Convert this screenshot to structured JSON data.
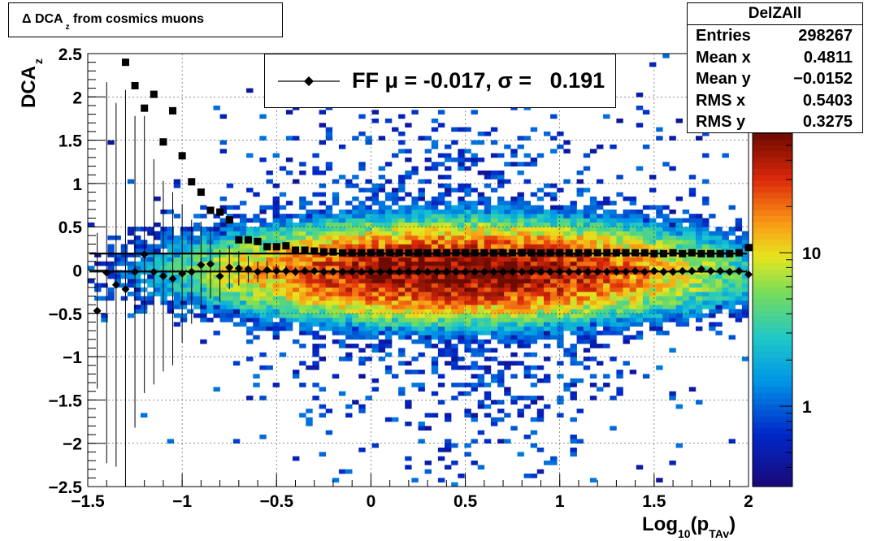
{
  "title": "Δ DCA_z from cosmics muons",
  "title_parts": {
    "main": "Δ DCA",
    "sub": "z",
    "rest": " from cosmics muons"
  },
  "stats": {
    "name": "DelZAll",
    "rows": [
      {
        "label": "Entries",
        "value": "298267"
      },
      {
        "label": "Mean x",
        "value": "0.4811"
      },
      {
        "label": "Mean y",
        "value": "−0.0152"
      },
      {
        "label": "RMS x",
        "value": "0.5403"
      },
      {
        "label": "RMS y",
        "value": "0.3275"
      }
    ]
  },
  "legend": {
    "label": "FF μ = -0.017, σ =   0.191"
  },
  "colors": {
    "frame": "#000000",
    "grid": "#000000",
    "markers": "#000000"
  },
  "chart_data": {
    "type": "heatmap",
    "title": "Δ DCA_z from cosmics muons",
    "xlabel": "Log10(pTAv)",
    "xlabel_parts": {
      "a": "Log",
      "a_sub": "10",
      "b": "(p",
      "b_sub": "TAv",
      "c": ")"
    },
    "ylabel": "DCA_z",
    "ylabel_parts": {
      "main": "DCA",
      "sub": "z"
    },
    "xlim": [
      -1.5,
      2.0
    ],
    "ylim": [
      -2.5,
      2.5
    ],
    "x_ticks": [
      "−1.5",
      "−1",
      "−0.5",
      "0",
      "0.5",
      "1",
      "1.5",
      "2"
    ],
    "x_tick_values": [
      -1.5,
      -1,
      -0.5,
      0,
      0.5,
      1,
      1.5,
      2
    ],
    "y_ticks": [
      "−2.5",
      "−2",
      "−1.5",
      "−1",
      "−0.5",
      "0",
      "0.5",
      "1",
      "1.5",
      "2",
      "2.5"
    ],
    "y_tick_values": [
      -2.5,
      -2,
      -1.5,
      -1,
      -0.5,
      0,
      0.5,
      1,
      1.5,
      2,
      2.5
    ],
    "grid": true,
    "colorbar": {
      "scale": "log",
      "min": 0.3,
      "max": 60,
      "tick_labels": [
        "1",
        "10"
      ],
      "tick_values": [
        1,
        10
      ]
    },
    "density_model": {
      "x_mean": 0.48,
      "x_rms": 0.54,
      "y_mean": -0.015,
      "y_rms": 0.33,
      "peak": 60
    },
    "fit_lines": [
      {
        "name": "mean",
        "y": -0.017
      },
      {
        "name": "sigma",
        "y": 0.191
      }
    ],
    "series": [
      {
        "name": "mean",
        "marker": "diamond",
        "x": [
          -1.45,
          -1.4,
          -1.35,
          -1.3,
          -1.25,
          -1.2,
          -1.15,
          -1.1,
          -1.05,
          -1.0,
          -0.95,
          -0.9,
          -0.85,
          -0.8,
          -0.75,
          -0.7,
          -0.65,
          -0.6,
          -0.55,
          -0.5,
          -0.45,
          -0.4,
          -0.35,
          -0.3,
          -0.25,
          -0.2,
          -0.15,
          -0.1,
          -0.05,
          0.0,
          0.05,
          0.1,
          0.15,
          0.2,
          0.25,
          0.3,
          0.35,
          0.4,
          0.45,
          0.5,
          0.55,
          0.6,
          0.65,
          0.7,
          0.75,
          0.8,
          0.85,
          0.9,
          0.95,
          1.0,
          1.05,
          1.1,
          1.15,
          1.2,
          1.25,
          1.3,
          1.35,
          1.4,
          1.45,
          1.5,
          1.55,
          1.6,
          1.65,
          1.7,
          1.75,
          1.8,
          1.85,
          1.9,
          1.95,
          2.0
        ],
        "y": [
          -0.47,
          -0.03,
          -0.17,
          -0.22,
          -0.02,
          0.18,
          -0.02,
          -0.07,
          -0.1,
          -0.04,
          -0.02,
          0.06,
          0.07,
          -0.07,
          0.03,
          0.02,
          0.01,
          -0.02,
          0.0,
          -0.01,
          -0.01,
          -0.02,
          -0.01,
          -0.01,
          -0.02,
          -0.02,
          -0.02,
          -0.02,
          -0.02,
          -0.02,
          -0.02,
          -0.02,
          -0.02,
          -0.02,
          -0.02,
          -0.02,
          -0.02,
          -0.02,
          -0.02,
          -0.02,
          -0.02,
          -0.02,
          -0.02,
          -0.02,
          -0.02,
          -0.02,
          -0.02,
          -0.02,
          -0.02,
          -0.02,
          -0.02,
          -0.02,
          -0.02,
          -0.02,
          -0.02,
          -0.02,
          -0.02,
          -0.01,
          -0.02,
          -0.01,
          -0.02,
          -0.02,
          -0.01,
          -0.01,
          0.01,
          -0.01,
          -0.01,
          -0.02,
          -0.01,
          -0.05
        ],
        "err": [
          0.9,
          2.2,
          2.1,
          2.3,
          1.8,
          1.6,
          1.3,
          1.1,
          1.0,
          0.8,
          0.6,
          0.5,
          0.4,
          0.3,
          0.25,
          0.2,
          0.15,
          0.12,
          0.1,
          0.08,
          0.06,
          0.05,
          0.04,
          0.04,
          0.03,
          0.03,
          0.03,
          0.02,
          0.02,
          0.02,
          0.02,
          0.02,
          0.02,
          0.02,
          0.02,
          0.02,
          0.02,
          0.02,
          0.02,
          0.02,
          0.02,
          0.02,
          0.02,
          0.02,
          0.02,
          0.02,
          0.02,
          0.02,
          0.02,
          0.02,
          0.02,
          0.02,
          0.02,
          0.02,
          0.02,
          0.02,
          0.02,
          0.02,
          0.02,
          0.02,
          0.02,
          0.02,
          0.02,
          0.02,
          0.02,
          0.02,
          0.02,
          0.02,
          0.02,
          0.02
        ]
      },
      {
        "name": "sigma",
        "marker": "square",
        "x": [
          -1.3,
          -1.25,
          -1.2,
          -1.15,
          -1.1,
          -1.05,
          -1.0,
          -0.95,
          -0.9,
          -0.85,
          -0.8,
          -0.75,
          -0.7,
          -0.65,
          -0.6,
          -0.55,
          -0.5,
          -0.45,
          -0.4,
          -0.35,
          -0.3,
          -0.25,
          -0.2,
          -0.15,
          -0.1,
          -0.05,
          0.0,
          0.05,
          0.1,
          0.15,
          0.2,
          0.25,
          0.3,
          0.35,
          0.4,
          0.45,
          0.5,
          0.55,
          0.6,
          0.65,
          0.7,
          0.75,
          0.8,
          0.85,
          0.9,
          0.95,
          1.0,
          1.05,
          1.1,
          1.15,
          1.2,
          1.25,
          1.3,
          1.35,
          1.4,
          1.45,
          1.5,
          1.55,
          1.6,
          1.65,
          1.7,
          1.75,
          1.8,
          1.85,
          1.9,
          1.95,
          2.0
        ],
        "y": [
          2.4,
          2.13,
          1.87,
          2.03,
          1.48,
          1.84,
          1.32,
          1.02,
          0.9,
          0.69,
          0.67,
          0.58,
          0.35,
          0.35,
          0.33,
          0.27,
          0.27,
          0.28,
          0.23,
          0.23,
          0.22,
          0.21,
          0.21,
          0.2,
          0.2,
          0.2,
          0.2,
          0.2,
          0.2,
          0.2,
          0.2,
          0.2,
          0.2,
          0.2,
          0.2,
          0.2,
          0.2,
          0.2,
          0.2,
          0.2,
          0.2,
          0.2,
          0.2,
          0.2,
          0.2,
          0.2,
          0.2,
          0.2,
          0.2,
          0.2,
          0.2,
          0.2,
          0.2,
          0.2,
          0.2,
          0.2,
          0.19,
          0.19,
          0.2,
          0.19,
          0.2,
          0.19,
          0.19,
          0.19,
          0.19,
          0.2,
          0.26
        ]
      }
    ]
  }
}
